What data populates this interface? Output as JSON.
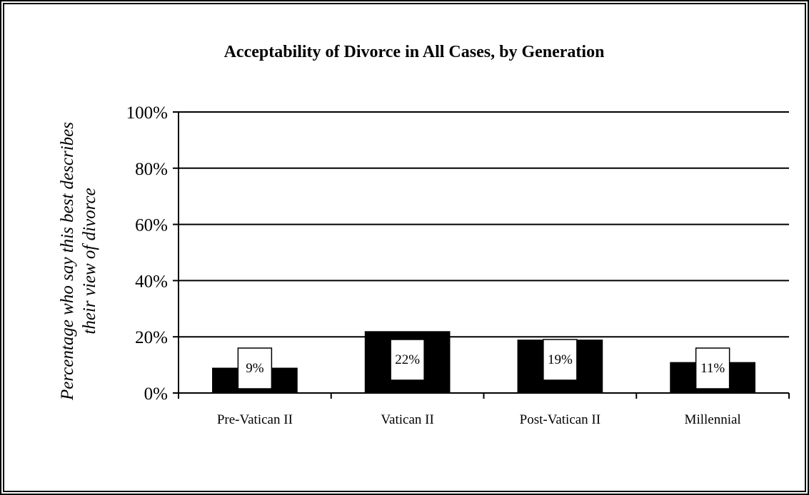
{
  "chart_data": {
    "type": "bar",
    "title": "Acceptability of Divorce in All Cases, by Generation",
    "ylabel_lines": [
      "Percentage who say this best describes",
      "their view of divorce"
    ],
    "xlabel": "",
    "categories": [
      "Pre-Vatican II",
      "Vatican II",
      "Post-Vatican II",
      "Millennial"
    ],
    "values": [
      9,
      22,
      19,
      11
    ],
    "data_labels": [
      "9%",
      "22%",
      "19%",
      "11%"
    ],
    "ylim": [
      0,
      100
    ],
    "yticks": [
      0,
      20,
      40,
      60,
      80,
      100
    ],
    "ytick_labels": [
      "0%",
      "20%",
      "40%",
      "60%",
      "80%",
      "100%"
    ],
    "grid": true,
    "legend": "none",
    "colors": {
      "bar": "#000000",
      "label_box": "#ffffff",
      "grid": "#000000"
    }
  }
}
